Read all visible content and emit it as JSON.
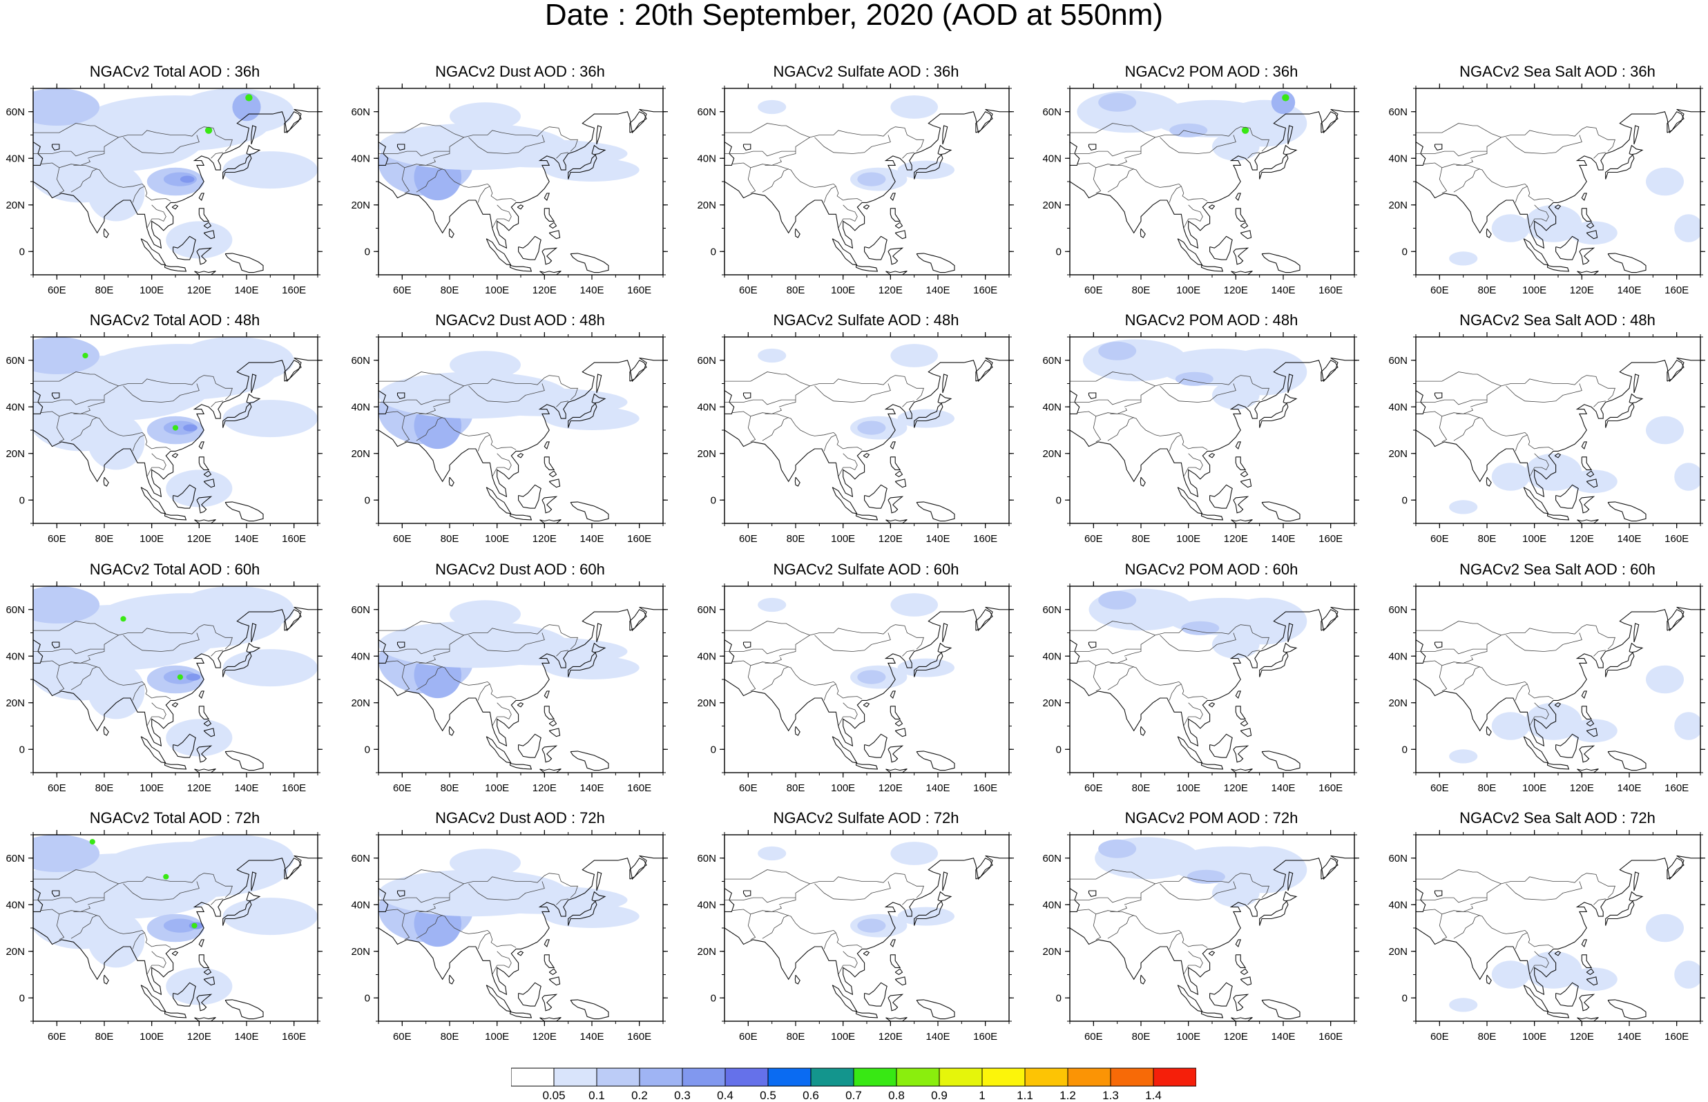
{
  "title": "Date : 20th September, 2020 (AOD at 550nm)",
  "panels": [
    [
      "NGACv2 Total AOD : 36h",
      "NGACv2 Dust AOD : 36h",
      "NGACv2 Sulfate AOD : 36h",
      "NGACv2 POM AOD : 36h",
      "NGACv2 Sea Salt AOD : 36h"
    ],
    [
      "NGACv2 Total AOD : 48h",
      "NGACv2 Dust AOD : 48h",
      "NGACv2 Sulfate AOD : 48h",
      "NGACv2 POM AOD : 48h",
      "NGACv2 Sea Salt AOD : 48h"
    ],
    [
      "NGACv2 Total AOD : 60h",
      "NGACv2 Dust AOD : 60h",
      "NGACv2 Sulfate AOD : 60h",
      "NGACv2 POM AOD : 60h",
      "NGACv2 Sea Salt AOD : 60h"
    ],
    [
      "NGACv2 Total AOD : 72h",
      "NGACv2 Dust AOD : 72h",
      "NGACv2 Sulfate AOD : 72h",
      "NGACv2 POM AOD : 72h",
      "NGACv2 Sea Salt  AOD : 72h"
    ]
  ],
  "map": {
    "lon_range": [
      50,
      170
    ],
    "lat_range": [
      -10,
      70
    ],
    "lon_ticks": [
      "60E",
      "80E",
      "100E",
      "120E",
      "140E",
      "160E"
    ],
    "lon_tick_values": [
      60,
      80,
      100,
      120,
      140,
      160
    ],
    "lat_ticks": [
      "0",
      "20N",
      "40N",
      "60N"
    ],
    "lat_tick_values": [
      0,
      20,
      40,
      60
    ]
  },
  "colorbar": {
    "labels": [
      "0.05",
      "0.1",
      "0.2",
      "0.3",
      "0.4",
      "0.5",
      "0.6",
      "0.7",
      "0.8",
      "0.9",
      "1",
      "1.1",
      "1.2",
      "1.3",
      "1.4"
    ],
    "colors": [
      "#ffffff",
      "#d9e4fb",
      "#bcccf7",
      "#9fb4f4",
      "#8198ef",
      "#6571ea",
      "#0a6bf2",
      "#13958d",
      "#38e814",
      "#8aee0d",
      "#e5f50b",
      "#fcf50a",
      "#fdc404",
      "#fb9405",
      "#f76a07",
      "#f51f0a"
    ]
  }
}
